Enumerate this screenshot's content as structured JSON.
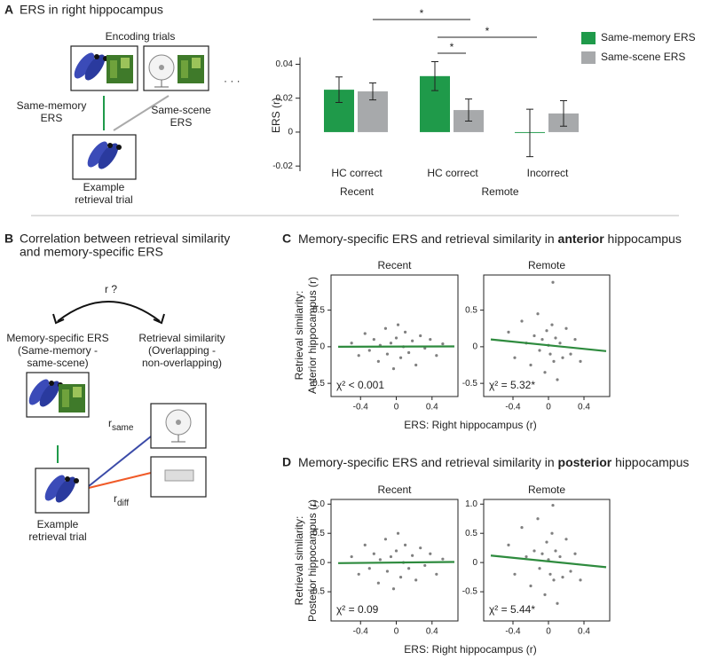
{
  "panel_a": {
    "label": "A",
    "title": "ERS in right hippocampus",
    "encoding": "Encoding trials",
    "dots": "· · ·",
    "same_memory": [
      "Same-memory",
      "ERS"
    ],
    "same_scene": [
      "Same-scene",
      "ERS"
    ],
    "retrieval": [
      "Example",
      "retrieval trial"
    ]
  },
  "panel_b": {
    "label": "B",
    "title": [
      "Correlation between retrieval similarity",
      "and memory-specific ERS"
    ],
    "question": "r ?",
    "left": [
      "Memory-specific ERS",
      "(Same-memory -",
      "same-scene)"
    ],
    "right": [
      "Retrieval similarity",
      "(Overlapping -",
      "non-overlapping)"
    ],
    "r_same": [
      "r",
      "same"
    ],
    "r_diff": [
      "r",
      "diff"
    ],
    "retrieval": [
      "Example",
      "retrieval trial"
    ]
  },
  "panel_c": {
    "label": "C",
    "title": [
      "Memory-specific ERS and retrieval similarity in ",
      "anterior",
      " hippocampus"
    ],
    "ylabel": [
      "Retrieval similarity:",
      "Anterior hippocampus (r)"
    ],
    "xlabel": "ERS: Right hippocampus (r)"
  },
  "panel_d": {
    "label": "D",
    "title": [
      "Memory-specific ERS and retrieval similarity in ",
      "posterior",
      " hippocampus"
    ],
    "ylabel": [
      "Retrieval similarity:",
      "Posterior hippocampus (r)"
    ],
    "xlabel": "ERS: Right hippocampus (r)"
  },
  "chart_data": [
    {
      "type": "bar",
      "ylabel": "ERS (r)",
      "categories": [
        "HC correct",
        "HC correct",
        "Incorrect"
      ],
      "groups": [
        "Recent",
        "Remote"
      ],
      "series": [
        {
          "name": "Same-memory ERS",
          "color": "#1f9a4a",
          "values": [
            0.025,
            0.033,
            -0.0005
          ],
          "errors": [
            0.0075,
            0.0085,
            0.014
          ]
        },
        {
          "name": "Same-scene ERS",
          "color": "#a7a9ab",
          "values": [
            0.024,
            0.013,
            0.011
          ],
          "errors": [
            0.005,
            0.0065,
            0.0075
          ]
        }
      ],
      "ylim": [
        -0.022,
        0.042
      ],
      "yticks": [
        -0.02,
        0,
        0.02,
        0.04
      ],
      "annotations": [
        "*",
        "*",
        "*"
      ]
    },
    {
      "type": "scatter",
      "title": "Recent",
      "annotation": "χ² < 0.001",
      "xlim": [
        -0.73,
        0.69
      ],
      "ylim": [
        -0.68,
        0.98
      ],
      "xticks": [
        -0.4,
        0,
        0.4
      ],
      "yticks": [
        0.5,
        0,
        -0.5
      ],
      "points": {
        "color": "#555555",
        "x": [
          -0.5,
          -0.42,
          -0.35,
          -0.3,
          -0.25,
          -0.2,
          -0.18,
          -0.12,
          -0.1,
          -0.06,
          -0.03,
          0,
          0.02,
          0.05,
          0.08,
          0.1,
          0.14,
          0.18,
          0.22,
          0.27,
          0.32,
          0.38,
          0.45,
          0.52
        ],
        "y": [
          0.05,
          -0.12,
          0.18,
          -0.05,
          0.1,
          -0.2,
          0.02,
          0.25,
          -0.1,
          0.05,
          -0.3,
          0.12,
          0.3,
          -0.15,
          0,
          0.2,
          -0.08,
          0.08,
          -0.25,
          0.15,
          -0.02,
          0.1,
          -0.12,
          0.04
        ]
      },
      "fit": {
        "color": "#2e8b3e",
        "x": [
          -0.65,
          0.65
        ],
        "y": [
          0,
          0.005
        ]
      }
    },
    {
      "type": "scatter",
      "title": "Remote",
      "annotation": "χ² = 5.32*",
      "xlim": [
        -0.73,
        0.69
      ],
      "ylim": [
        -0.68,
        0.98
      ],
      "xticks": [
        -0.4,
        0,
        0.4
      ],
      "yticks": [
        0.5,
        0,
        -0.5
      ],
      "points": {
        "color": "#555555",
        "x": [
          -0.45,
          -0.38,
          -0.3,
          -0.25,
          -0.2,
          -0.16,
          -0.12,
          -0.1,
          -0.07,
          -0.04,
          -0.02,
          0,
          0.02,
          0.04,
          0.06,
          0.08,
          0.1,
          0.13,
          0.16,
          0.2,
          0.25,
          0.3,
          0.36,
          0.05
        ],
        "y": [
          0.2,
          -0.15,
          0.35,
          0.05,
          -0.25,
          0.15,
          0.45,
          -0.05,
          0.1,
          -0.35,
          0.22,
          0.02,
          -0.1,
          0.3,
          -0.2,
          0.12,
          -0.45,
          0.05,
          -0.15,
          0.25,
          -0.1,
          0.1,
          -0.2,
          0.88
        ]
      },
      "fit": {
        "color": "#2e8b3e",
        "x": [
          -0.65,
          0.65
        ],
        "y": [
          0.1,
          -0.06
        ]
      }
    },
    {
      "type": "scatter",
      "title": "Recent",
      "annotation": "χ² = 0.09",
      "xlim": [
        -0.73,
        0.69
      ],
      "ylim": [
        -1.0,
        1.08
      ],
      "xticks": [
        -0.4,
        0,
        0.4
      ],
      "yticks": [
        {
          "value": 1,
          "label": "1.0"
        },
        0.5,
        0,
        -0.5
      ],
      "points": {
        "color": "#555555",
        "x": [
          -0.5,
          -0.42,
          -0.35,
          -0.3,
          -0.25,
          -0.2,
          -0.18,
          -0.12,
          -0.1,
          -0.06,
          -0.03,
          0,
          0.02,
          0.05,
          0.08,
          0.1,
          0.14,
          0.18,
          0.22,
          0.27,
          0.32,
          0.38,
          0.45,
          0.52
        ],
        "y": [
          0.1,
          -0.2,
          0.3,
          -0.1,
          0.15,
          -0.35,
          0.05,
          0.4,
          -0.15,
          0.1,
          -0.45,
          0.2,
          0.5,
          -0.25,
          0,
          0.3,
          -0.1,
          0.12,
          -0.3,
          0.25,
          -0.05,
          0.15,
          -0.2,
          0.06
        ]
      },
      "fit": {
        "color": "#2e8b3e",
        "x": [
          -0.65,
          0.65
        ],
        "y": [
          -0.01,
          0.01
        ]
      }
    },
    {
      "type": "scatter",
      "title": "Remote",
      "annotation": "χ² = 5.44*",
      "xlim": [
        -0.73,
        0.69
      ],
      "ylim": [
        -1.0,
        1.08
      ],
      "xticks": [
        -0.4,
        0,
        0.4
      ],
      "yticks": [
        {
          "value": 1,
          "label": "1.0"
        },
        0.5,
        0,
        -0.5
      ],
      "points": {
        "color": "#555555",
        "x": [
          -0.45,
          -0.38,
          -0.3,
          -0.25,
          -0.2,
          -0.16,
          -0.12,
          -0.1,
          -0.07,
          -0.04,
          -0.02,
          0,
          0.02,
          0.04,
          0.06,
          0.08,
          0.1,
          0.13,
          0.16,
          0.2,
          0.25,
          0.3,
          0.36,
          0.05
        ],
        "y": [
          0.3,
          -0.2,
          0.6,
          0.1,
          -0.4,
          0.2,
          0.75,
          -0.1,
          0.15,
          -0.55,
          0.35,
          0.05,
          -0.2,
          0.5,
          -0.3,
          0.2,
          -0.7,
          0.1,
          -0.25,
          0.4,
          -0.15,
          0.15,
          -0.3,
          0.98
        ]
      },
      "fit": {
        "color": "#2e8b3e",
        "x": [
          -0.65,
          0.65
        ],
        "y": [
          0.12,
          -0.08
        ]
      }
    }
  ]
}
